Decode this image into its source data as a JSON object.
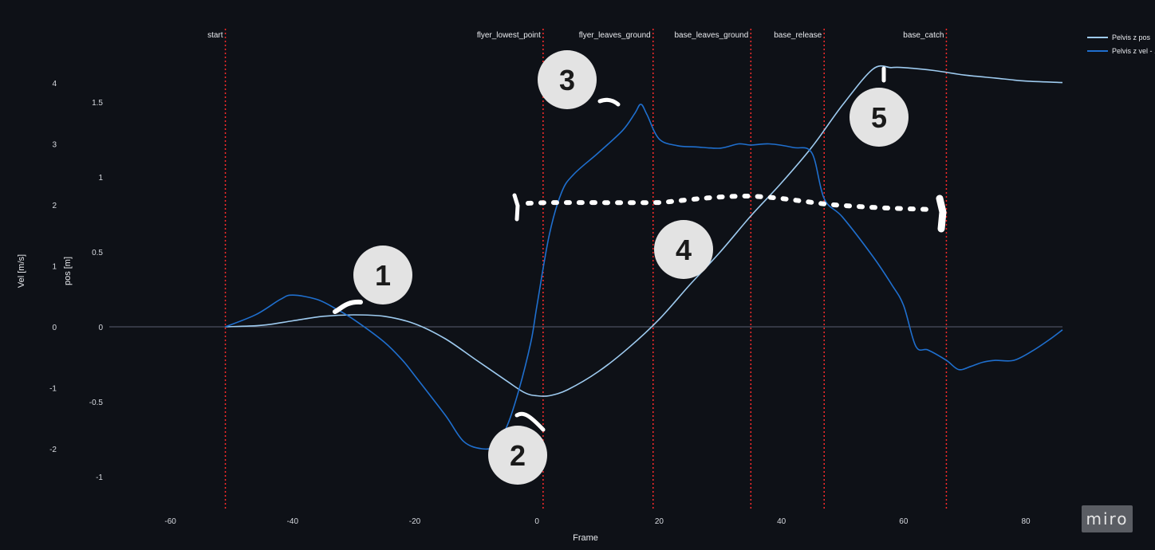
{
  "chart_data": {
    "type": "line",
    "xlabel": "Frame",
    "ylabel_vel": "Vel [m/s]",
    "ylabel_pos": "pos [m]",
    "xlim": [
      -70,
      86
    ],
    "vel_ylim": [
      -2.8,
      4.5
    ],
    "pos_ylim": [
      -1.2,
      1.75
    ],
    "x_ticks": [
      "-60",
      "-40",
      "-20",
      "0",
      "20",
      "40",
      "60",
      "80"
    ],
    "vel_ticks": [
      "4",
      "3",
      "2",
      "1",
      "0",
      "-1",
      "-2"
    ],
    "pos_ticks": [
      "1.5",
      "1",
      "0.5",
      "0",
      "-0.5",
      "-1"
    ],
    "zero_line": true,
    "grid": false,
    "legend_position": "top-right",
    "series": [
      {
        "name": "Pelvis z pos",
        "axis": "pos",
        "color": "#9ecbf0",
        "x": [
          -51,
          -45,
          -40,
          -35,
          -30,
          -25,
          -20,
          -15,
          -10,
          -5,
          -2,
          0,
          2,
          5,
          10,
          15,
          20,
          25,
          30,
          35,
          40,
          45,
          50,
          55,
          58,
          60,
          65,
          70,
          75,
          80,
          86
        ],
        "y": [
          0,
          0.01,
          0.04,
          0.07,
          0.08,
          0.07,
          0.02,
          -0.08,
          -0.22,
          -0.36,
          -0.44,
          -0.46,
          -0.46,
          -0.42,
          -0.3,
          -0.14,
          0.05,
          0.28,
          0.5,
          0.74,
          0.96,
          1.2,
          1.48,
          1.72,
          1.73,
          1.73,
          1.71,
          1.68,
          1.66,
          1.64,
          1.63
        ]
      },
      {
        "name": "Pelvis z vel - ...",
        "axis": "vel",
        "color": "#1f6fce",
        "x": [
          -51,
          -46,
          -42,
          -40,
          -36,
          -33,
          -30,
          -25,
          -22,
          -20,
          -15,
          -12,
          -9,
          -7,
          -5,
          -3,
          -1,
          0,
          2,
          4,
          6,
          10,
          14,
          16,
          17,
          18,
          20,
          23,
          26,
          30,
          33,
          35,
          38,
          42,
          45,
          47,
          50,
          55,
          58,
          60,
          62,
          64,
          67,
          69,
          71,
          73,
          75,
          78,
          81,
          84,
          86
        ],
        "y": [
          0,
          0.2,
          0.45,
          0.52,
          0.45,
          0.3,
          0.12,
          -0.25,
          -0.55,
          -0.8,
          -1.45,
          -1.88,
          -2.0,
          -1.95,
          -1.65,
          -1.05,
          -0.25,
          0.35,
          1.5,
          2.2,
          2.5,
          2.85,
          3.22,
          3.5,
          3.65,
          3.48,
          3.08,
          2.97,
          2.95,
          2.93,
          3.0,
          2.98,
          3.0,
          2.94,
          2.85,
          2.1,
          1.8,
          1.15,
          0.7,
          0.35,
          -0.32,
          -0.38,
          -0.55,
          -0.7,
          -0.65,
          -0.58,
          -0.55,
          -0.55,
          -0.4,
          -0.2,
          -0.05
        ]
      }
    ],
    "events": [
      {
        "label": "start",
        "frame": -51
      },
      {
        "label": "flyer_lowest_point",
        "frame": 1
      },
      {
        "label": "flyer_leaves_ground",
        "frame": 19
      },
      {
        "label": "base_leaves_ground",
        "frame": 35
      },
      {
        "label": "base_release",
        "frame": 47
      },
      {
        "label": "base_catch",
        "frame": 67
      }
    ],
    "event_color": "#ff2b2b",
    "annotations": [
      "1",
      "2",
      "3",
      "4",
      "5"
    ]
  },
  "legend": [
    "Pelvis z pos",
    "Pelvis z vel - ..."
  ],
  "watermark": "miro"
}
